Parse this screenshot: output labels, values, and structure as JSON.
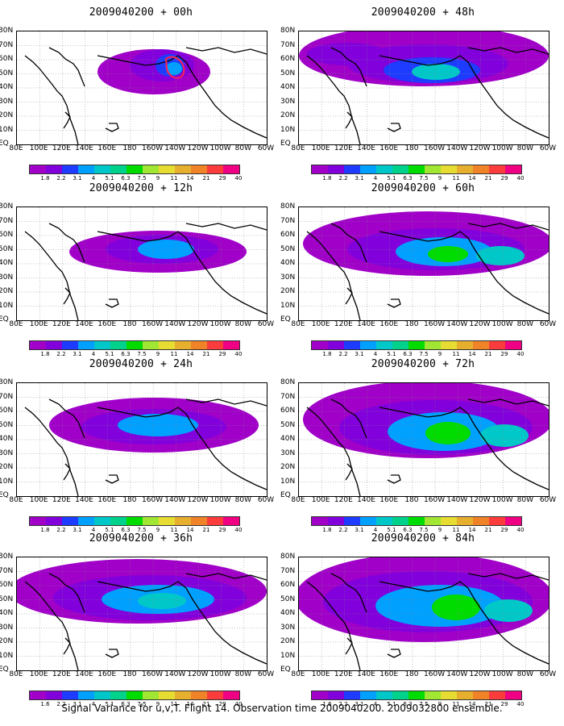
{
  "panels": [
    {
      "title": "2009040200 + 00h"
    },
    {
      "title": "2009040200 + 48h"
    },
    {
      "title": "2009040200 + 12h"
    },
    {
      "title": "2009040200 + 60h"
    },
    {
      "title": "2009040200 + 24h"
    },
    {
      "title": "2009040200 + 72h"
    },
    {
      "title": "2009040200 + 36h"
    },
    {
      "title": "2009040200 + 84h"
    }
  ],
  "map": {
    "longitude_labels": [
      "80E",
      "100E",
      "120E",
      "140E",
      "160E",
      "180",
      "160W",
      "140W",
      "120W",
      "100W",
      "80W",
      "60W"
    ],
    "latitude_labels": [
      "80N",
      "70N",
      "60N",
      "50N",
      "40N",
      "30N",
      "20N",
      "10N",
      "EQ"
    ]
  },
  "colorbar": {
    "labels": [
      "1.8",
      "2.2",
      "3.1",
      "4",
      "5.1",
      "6.3",
      "7.5",
      "9",
      "11",
      "14",
      "21",
      "29",
      "40"
    ],
    "labels_36h": [
      "1.6",
      "2.2",
      "3.1",
      "4",
      "5.1",
      "6.3",
      "7.5",
      "9",
      "11",
      "14",
      "21",
      "29",
      "40"
    ],
    "colors": [
      "#a000c8",
      "#8200dc",
      "#1e3cff",
      "#00a0ff",
      "#00c8c8",
      "#00d28c",
      "#00dc00",
      "#a0e632",
      "#e6dc32",
      "#e6af2d",
      "#f08228",
      "#fa3c3c",
      "#f00082"
    ]
  },
  "caption": "Signal Variance for u,v,T. Flight 14. Observation time 2009040200. 2009032800 ensemble."
}
